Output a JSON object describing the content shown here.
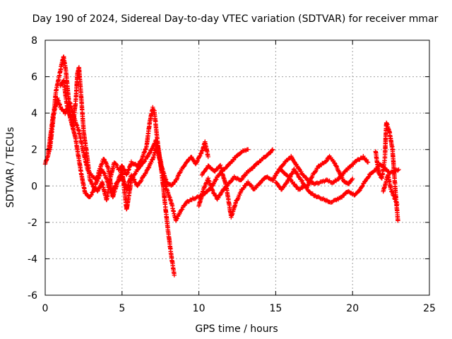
{
  "chart_data": {
    "type": "scatter",
    "title": "Day 190 of 2024, Sidereal Day-to-day VTEC variation (SDTVAR) for receiver mmar",
    "xlabel": "GPS time / hours",
    "ylabel": "SDTVAR / TECUs",
    "xlim": [
      0,
      25
    ],
    "ylim": [
      -6,
      8
    ],
    "xticks": [
      0,
      5,
      10,
      15,
      20,
      25
    ],
    "yticks": [
      -6,
      -4,
      -2,
      0,
      2,
      4,
      6,
      8
    ],
    "grid": true,
    "marker": "plus",
    "color": "#ff0000",
    "series": [
      {
        "name": "track-1",
        "points": [
          [
            0.0,
            1.2
          ],
          [
            0.3,
            2.0
          ],
          [
            0.5,
            3.5
          ],
          [
            0.7,
            5.2
          ],
          [
            0.9,
            6.0
          ],
          [
            1.1,
            6.8
          ],
          [
            1.2,
            7.1
          ],
          [
            1.35,
            6.3
          ],
          [
            1.5,
            5.0
          ],
          [
            1.6,
            3.8
          ],
          [
            1.8,
            3.2
          ],
          [
            2.0,
            4.8
          ],
          [
            2.1,
            6.2
          ],
          [
            2.2,
            6.5
          ],
          [
            2.35,
            4.8
          ],
          [
            2.5,
            3.0
          ],
          [
            2.7,
            1.8
          ],
          [
            2.9,
            0.4
          ],
          [
            3.1,
            0.0
          ],
          [
            3.4,
            -0.3
          ],
          [
            3.7,
            0.2
          ],
          [
            4.0,
            -0.8
          ],
          [
            4.2,
            0.3
          ],
          [
            4.5,
            1.3
          ],
          [
            4.8,
            0.9
          ],
          [
            5.0,
            1.1
          ],
          [
            5.3,
            0.6
          ],
          [
            5.6,
            1.3
          ],
          [
            6.0,
            1.1
          ],
          [
            6.3,
            1.5
          ],
          [
            6.6,
            2.2
          ],
          [
            6.8,
            3.5
          ],
          [
            7.0,
            4.3
          ],
          [
            7.1,
            4.1
          ],
          [
            7.3,
            2.5
          ],
          [
            7.6,
            0.6
          ],
          [
            7.8,
            -1.0
          ],
          [
            8.0,
            -2.5
          ],
          [
            8.2,
            -3.8
          ],
          [
            8.4,
            -4.9
          ]
        ]
      },
      {
        "name": "track-2",
        "points": [
          [
            0.2,
            1.8
          ],
          [
            0.5,
            3.8
          ],
          [
            0.8,
            4.8
          ],
          [
            1.0,
            4.3
          ],
          [
            1.3,
            4.0
          ],
          [
            1.6,
            4.6
          ],
          [
            1.9,
            3.7
          ],
          [
            2.2,
            3.0
          ],
          [
            2.5,
            1.8
          ],
          [
            2.8,
            0.8
          ],
          [
            3.1,
            0.5
          ],
          [
            3.4,
            0.3
          ],
          [
            3.7,
            0.9
          ],
          [
            4.0,
            0.4
          ],
          [
            4.3,
            -0.4
          ],
          [
            4.6,
            0.1
          ],
          [
            5.0,
            0.5
          ],
          [
            5.3,
            -0.2
          ],
          [
            5.6,
            0.6
          ],
          [
            6.0,
            0.0
          ],
          [
            6.3,
            0.4
          ],
          [
            6.6,
            0.8
          ],
          [
            7.0,
            1.5
          ],
          [
            7.3,
            2.2
          ],
          [
            7.6,
            1.0
          ],
          [
            7.9,
            0.2
          ],
          [
            8.2,
            0.0
          ],
          [
            8.5,
            0.3
          ],
          [
            8.8,
            0.8
          ],
          [
            9.1,
            1.2
          ],
          [
            9.5,
            1.6
          ],
          [
            9.8,
            1.2
          ],
          [
            10.2,
            1.9
          ],
          [
            10.4,
            2.4
          ],
          [
            10.6,
            1.6
          ]
        ]
      },
      {
        "name": "track-3",
        "points": [
          [
            1.0,
            5.5
          ],
          [
            1.2,
            5.8
          ],
          [
            1.4,
            4.5
          ],
          [
            1.7,
            3.6
          ],
          [
            2.0,
            2.5
          ],
          [
            2.3,
            0.9
          ],
          [
            2.6,
            -0.4
          ],
          [
            2.9,
            -0.6
          ],
          [
            3.2,
            -0.2
          ],
          [
            3.5,
            0.8
          ],
          [
            3.8,
            1.5
          ],
          [
            4.1,
            1.0
          ],
          [
            4.4,
            -0.6
          ],
          [
            4.7,
            0.2
          ],
          [
            5.0,
            0.9
          ],
          [
            5.3,
            -1.3
          ],
          [
            5.6,
            0.3
          ],
          [
            6.0,
            0.9
          ],
          [
            6.4,
            1.3
          ],
          [
            6.8,
            1.8
          ],
          [
            7.2,
            2.5
          ],
          [
            7.5,
            1.2
          ],
          [
            7.8,
            0.1
          ],
          [
            8.2,
            -0.9
          ],
          [
            8.5,
            -1.9
          ],
          [
            8.8,
            -1.4
          ],
          [
            9.2,
            -0.9
          ],
          [
            9.6,
            -0.7
          ],
          [
            10.0,
            -0.6
          ],
          [
            10.4,
            -0.4
          ],
          [
            10.8,
            -0.1
          ],
          [
            11.2,
            0.5
          ],
          [
            11.6,
            0.9
          ],
          [
            12.0,
            1.2
          ],
          [
            12.4,
            1.6
          ],
          [
            12.8,
            1.9
          ],
          [
            13.2,
            2.0
          ]
        ]
      },
      {
        "name": "track-4",
        "points": [
          [
            10.0,
            -1.1
          ],
          [
            10.3,
            -0.2
          ],
          [
            10.6,
            0.4
          ],
          [
            10.9,
            -0.3
          ],
          [
            11.2,
            -0.7
          ],
          [
            11.5,
            -0.3
          ],
          [
            11.9,
            0.1
          ],
          [
            12.3,
            0.5
          ],
          [
            12.7,
            0.3
          ],
          [
            13.1,
            0.7
          ],
          [
            13.5,
            1.0
          ],
          [
            13.9,
            1.3
          ],
          [
            14.3,
            1.6
          ],
          [
            14.6,
            1.8
          ],
          [
            14.8,
            2.0
          ]
        ]
      },
      {
        "name": "track-5",
        "points": [
          [
            10.2,
            0.6
          ],
          [
            10.6,
            1.1
          ],
          [
            11.0,
            0.8
          ],
          [
            11.4,
            1.1
          ],
          [
            11.8,
            -0.1
          ],
          [
            12.1,
            -1.7
          ],
          [
            12.4,
            -0.9
          ],
          [
            12.8,
            -0.2
          ],
          [
            13.2,
            0.2
          ],
          [
            13.6,
            -0.2
          ],
          [
            14.0,
            0.2
          ],
          [
            14.4,
            0.5
          ],
          [
            14.8,
            0.3
          ],
          [
            15.2,
            0.9
          ],
          [
            15.6,
            1.3
          ],
          [
            16.0,
            1.6
          ],
          [
            16.3,
            1.2
          ],
          [
            16.7,
            0.7
          ],
          [
            17.1,
            0.3
          ],
          [
            17.5,
            0.1
          ],
          [
            17.9,
            0.2
          ],
          [
            18.3,
            0.3
          ],
          [
            18.7,
            0.2
          ],
          [
            19.1,
            0.4
          ],
          [
            19.5,
            0.8
          ],
          [
            19.9,
            1.1
          ],
          [
            20.3,
            1.4
          ],
          [
            20.7,
            1.6
          ],
          [
            21.0,
            1.3
          ]
        ]
      },
      {
        "name": "track-6",
        "points": [
          [
            15.0,
            0.2
          ],
          [
            15.4,
            -0.2
          ],
          [
            15.8,
            0.3
          ],
          [
            16.2,
            0.9
          ],
          [
            16.6,
            0.4
          ],
          [
            17.0,
            -0.1
          ],
          [
            17.4,
            0.6
          ],
          [
            17.8,
            1.1
          ],
          [
            18.2,
            1.3
          ],
          [
            18.5,
            1.6
          ],
          [
            18.8,
            1.3
          ],
          [
            19.1,
            0.8
          ],
          [
            19.4,
            0.3
          ],
          [
            19.7,
            0.1
          ],
          [
            20.0,
            0.4
          ]
        ]
      },
      {
        "name": "track-7",
        "points": [
          [
            15.3,
            0.9
          ],
          [
            15.7,
            0.6
          ],
          [
            16.1,
            0.2
          ],
          [
            16.5,
            -0.2
          ],
          [
            16.9,
            0.0
          ],
          [
            17.3,
            -0.4
          ],
          [
            17.7,
            -0.6
          ],
          [
            18.1,
            -0.7
          ],
          [
            18.5,
            -0.9
          ],
          [
            18.9,
            -0.8
          ],
          [
            19.3,
            -0.6
          ],
          [
            19.7,
            -0.3
          ],
          [
            20.1,
            -0.5
          ],
          [
            20.4,
            -0.3
          ],
          [
            20.7,
            0.1
          ],
          [
            21.1,
            0.6
          ],
          [
            21.5,
            0.9
          ],
          [
            21.8,
            1.2
          ],
          [
            22.1,
            1.0
          ],
          [
            22.4,
            0.7
          ],
          [
            22.7,
            0.8
          ],
          [
            23.0,
            0.9
          ]
        ]
      },
      {
        "name": "track-8",
        "points": [
          [
            21.5,
            1.9
          ],
          [
            21.7,
            0.7
          ],
          [
            21.9,
            0.4
          ],
          [
            22.1,
            1.5
          ],
          [
            22.2,
            3.5
          ],
          [
            22.4,
            3.0
          ],
          [
            22.6,
            2.0
          ],
          [
            22.7,
            0.8
          ],
          [
            22.8,
            -0.4
          ],
          [
            22.9,
            -1.4
          ],
          [
            22.95,
            -1.9
          ]
        ]
      },
      {
        "name": "track-9",
        "points": [
          [
            22.0,
            -0.3
          ],
          [
            22.3,
            0.6
          ],
          [
            22.5,
            -0.2
          ],
          [
            22.7,
            -0.6
          ],
          [
            22.9,
            -1.0
          ]
        ]
      }
    ]
  }
}
